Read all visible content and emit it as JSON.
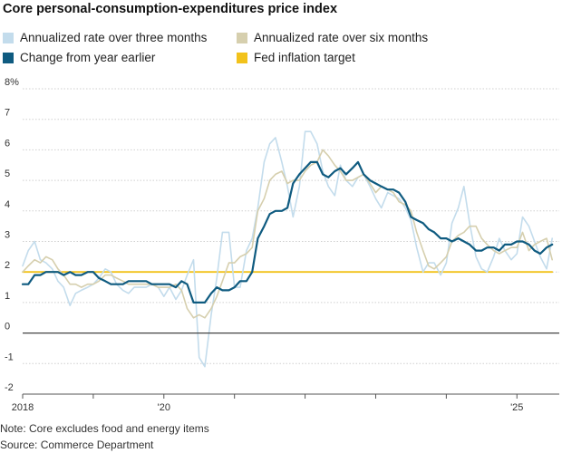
{
  "chart_data": {
    "type": "line",
    "title": "Core personal-consumption-expenditures price index",
    "ylim": [
      -2,
      8
    ],
    "xlim": [
      2018.0,
      2025.6
    ],
    "y_ticks": [
      {
        "value": 8,
        "label": "8%"
      },
      {
        "value": 7,
        "label": "7"
      },
      {
        "value": 6,
        "label": "6"
      },
      {
        "value": 5,
        "label": "5"
      },
      {
        "value": 4,
        "label": "4"
      },
      {
        "value": 3,
        "label": "3"
      },
      {
        "value": 2,
        "label": "2"
      },
      {
        "value": 1,
        "label": "1"
      },
      {
        "value": 0,
        "label": "0"
      },
      {
        "value": -1,
        "label": "-1"
      },
      {
        "value": -2,
        "label": "-2"
      }
    ],
    "x_ticks": [
      {
        "value": 2018.0,
        "label": "2018"
      },
      {
        "value": 2019.0,
        "label": ""
      },
      {
        "value": 2020.0,
        "label": "'20"
      },
      {
        "value": 2021.0,
        "label": ""
      },
      {
        "value": 2022.0,
        "label": ""
      },
      {
        "value": 2023.0,
        "label": ""
      },
      {
        "value": 2024.0,
        "label": ""
      },
      {
        "value": 2025.0,
        "label": "'25"
      }
    ],
    "grid": true,
    "legend_position": "top",
    "series": [
      {
        "name": "Annualized rate over three months",
        "color": "#c3dcec",
        "x": [
          2018.0,
          2018.08,
          2018.17,
          2018.25,
          2018.33,
          2018.42,
          2018.5,
          2018.58,
          2018.67,
          2018.75,
          2018.83,
          2018.92,
          2019.0,
          2019.08,
          2019.17,
          2019.25,
          2019.33,
          2019.42,
          2019.5,
          2019.58,
          2019.67,
          2019.75,
          2019.83,
          2019.92,
          2020.0,
          2020.08,
          2020.17,
          2020.25,
          2020.33,
          2020.42,
          2020.5,
          2020.58,
          2020.67,
          2020.75,
          2020.83,
          2020.92,
          2021.0,
          2021.08,
          2021.17,
          2021.25,
          2021.33,
          2021.42,
          2021.5,
          2021.58,
          2021.67,
          2021.75,
          2021.83,
          2021.92,
          2022.0,
          2022.08,
          2022.17,
          2022.25,
          2022.33,
          2022.42,
          2022.5,
          2022.58,
          2022.67,
          2022.75,
          2022.83,
          2022.92,
          2023.0,
          2023.08,
          2023.17,
          2023.25,
          2023.33,
          2023.42,
          2023.5,
          2023.58,
          2023.67,
          2023.75,
          2023.83,
          2023.92,
          2024.0,
          2024.08,
          2024.17,
          2024.25,
          2024.33,
          2024.42,
          2024.5,
          2024.58,
          2024.67,
          2024.75,
          2024.83,
          2024.92,
          2025.0,
          2025.08,
          2025.17,
          2025.25,
          2025.33,
          2025.42,
          2025.5
        ],
        "y": [
          2.2,
          2.7,
          3.0,
          2.4,
          2.3,
          2.1,
          1.7,
          1.5,
          0.9,
          1.3,
          1.4,
          1.5,
          1.6,
          1.8,
          2.1,
          2.0,
          1.6,
          1.4,
          1.3,
          1.5,
          1.5,
          1.5,
          1.6,
          1.5,
          1.2,
          1.5,
          1.1,
          1.4,
          1.9,
          2.4,
          -0.8,
          -1.1,
          0.6,
          1.8,
          3.3,
          3.3,
          1.5,
          1.5,
          2.7,
          3.1,
          4.1,
          5.6,
          6.2,
          6.4,
          5.6,
          4.8,
          3.8,
          4.8,
          6.6,
          6.6,
          6.2,
          5.3,
          4.8,
          4.5,
          5.5,
          5.0,
          4.8,
          5.1,
          5.2,
          4.8,
          4.4,
          4.1,
          4.6,
          4.5,
          4.4,
          4.1,
          3.7,
          2.8,
          2.0,
          2.3,
          2.3,
          1.9,
          2.3,
          3.6,
          4.1,
          4.8,
          3.6,
          2.5,
          2.1,
          2.0,
          2.5,
          3.1,
          2.7,
          2.4,
          2.6,
          3.8,
          3.5,
          3.0,
          2.5,
          2.1,
          3.1
        ]
      },
      {
        "name": "Annualized rate over six months",
        "color": "#d6cfae",
        "x": [
          2018.0,
          2018.08,
          2018.17,
          2018.25,
          2018.33,
          2018.42,
          2018.5,
          2018.58,
          2018.67,
          2018.75,
          2018.83,
          2018.92,
          2019.0,
          2019.08,
          2019.17,
          2019.25,
          2019.33,
          2019.42,
          2019.5,
          2019.58,
          2019.67,
          2019.75,
          2019.83,
          2019.92,
          2020.0,
          2020.08,
          2020.17,
          2020.25,
          2020.33,
          2020.42,
          2020.5,
          2020.58,
          2020.67,
          2020.75,
          2020.83,
          2020.92,
          2021.0,
          2021.08,
          2021.17,
          2021.25,
          2021.33,
          2021.42,
          2021.5,
          2021.58,
          2021.67,
          2021.75,
          2021.83,
          2021.92,
          2022.0,
          2022.08,
          2022.17,
          2022.25,
          2022.33,
          2022.42,
          2022.5,
          2022.58,
          2022.67,
          2022.75,
          2022.83,
          2022.92,
          2023.0,
          2023.08,
          2023.17,
          2023.25,
          2023.33,
          2023.42,
          2023.5,
          2023.58,
          2023.67,
          2023.75,
          2023.83,
          2023.92,
          2024.0,
          2024.08,
          2024.17,
          2024.25,
          2024.33,
          2024.42,
          2024.5,
          2024.58,
          2024.67,
          2024.75,
          2024.83,
          2024.92,
          2025.0,
          2025.08,
          2025.17,
          2025.25,
          2025.33,
          2025.42,
          2025.5
        ],
        "y": [
          2.0,
          2.2,
          2.4,
          2.3,
          2.5,
          2.4,
          2.1,
          1.9,
          1.6,
          1.6,
          1.5,
          1.6,
          1.6,
          1.7,
          1.9,
          1.9,
          1.8,
          1.7,
          1.6,
          1.6,
          1.6,
          1.6,
          1.6,
          1.5,
          1.5,
          1.5,
          1.6,
          1.4,
          0.8,
          0.5,
          0.6,
          0.5,
          0.8,
          1.2,
          1.7,
          2.3,
          2.3,
          2.5,
          2.6,
          2.8,
          4.0,
          4.4,
          5.0,
          5.2,
          5.3,
          4.9,
          5.0,
          5.0,
          5.3,
          5.5,
          5.6,
          6.0,
          5.8,
          5.5,
          5.3,
          5.0,
          5.0,
          5.1,
          5.2,
          4.9,
          4.6,
          4.8,
          4.7,
          4.6,
          4.3,
          4.2,
          4.0,
          3.3,
          2.7,
          2.2,
          2.1,
          2.3,
          2.5,
          3.0,
          3.2,
          3.3,
          3.5,
          3.5,
          3.1,
          2.9,
          2.7,
          2.6,
          2.7,
          2.8,
          2.8,
          3.3,
          2.7,
          2.9,
          3.0,
          3.1,
          2.4
        ]
      },
      {
        "name": "Change from year earlier",
        "color": "#0f5b80",
        "x": [
          2018.0,
          2018.08,
          2018.17,
          2018.25,
          2018.33,
          2018.42,
          2018.5,
          2018.58,
          2018.67,
          2018.75,
          2018.83,
          2018.92,
          2019.0,
          2019.08,
          2019.17,
          2019.25,
          2019.33,
          2019.42,
          2019.5,
          2019.58,
          2019.67,
          2019.75,
          2019.83,
          2019.92,
          2020.0,
          2020.08,
          2020.17,
          2020.25,
          2020.33,
          2020.42,
          2020.5,
          2020.58,
          2020.67,
          2020.75,
          2020.83,
          2020.92,
          2021.0,
          2021.08,
          2021.17,
          2021.25,
          2021.33,
          2021.42,
          2021.5,
          2021.58,
          2021.67,
          2021.75,
          2021.83,
          2021.92,
          2022.0,
          2022.08,
          2022.17,
          2022.25,
          2022.33,
          2022.42,
          2022.5,
          2022.58,
          2022.67,
          2022.75,
          2022.83,
          2022.92,
          2023.0,
          2023.08,
          2023.17,
          2023.25,
          2023.33,
          2023.42,
          2023.5,
          2023.58,
          2023.67,
          2023.75,
          2023.83,
          2023.92,
          2024.0,
          2024.08,
          2024.17,
          2024.25,
          2024.33,
          2024.42,
          2024.5,
          2024.58,
          2024.67,
          2024.75,
          2024.83,
          2024.92,
          2025.0,
          2025.08,
          2025.17,
          2025.25,
          2025.33,
          2025.42,
          2025.5
        ],
        "y": [
          1.6,
          1.6,
          1.9,
          1.9,
          2.0,
          2.0,
          2.0,
          1.9,
          2.0,
          1.9,
          1.9,
          2.0,
          2.0,
          1.8,
          1.7,
          1.6,
          1.6,
          1.6,
          1.7,
          1.7,
          1.7,
          1.7,
          1.6,
          1.6,
          1.6,
          1.6,
          1.5,
          1.7,
          1.6,
          1.0,
          1.0,
          1.0,
          1.3,
          1.5,
          1.4,
          1.4,
          1.5,
          1.7,
          1.7,
          2.0,
          3.1,
          3.5,
          3.9,
          4.0,
          4.0,
          4.1,
          4.9,
          5.2,
          5.4,
          5.6,
          5.6,
          5.2,
          5.1,
          5.3,
          5.4,
          5.2,
          5.4,
          5.6,
          5.2,
          5.0,
          4.9,
          4.8,
          4.7,
          4.7,
          4.6,
          4.3,
          3.8,
          3.7,
          3.6,
          3.4,
          3.3,
          3.1,
          3.1,
          3.0,
          3.1,
          3.0,
          2.9,
          2.7,
          2.7,
          2.8,
          2.8,
          2.7,
          2.9,
          2.9,
          3.0,
          3.0,
          2.9,
          2.7,
          2.6,
          2.8,
          2.9
        ]
      },
      {
        "name": "Fed inflation target",
        "color": "#f2c21b",
        "x": [
          2018.0,
          2025.5
        ],
        "y": [
          2.0,
          2.0
        ]
      }
    ]
  },
  "notes": {
    "note": "Note: Core excludes food and energy items",
    "source": "Source: Commerce Department"
  }
}
